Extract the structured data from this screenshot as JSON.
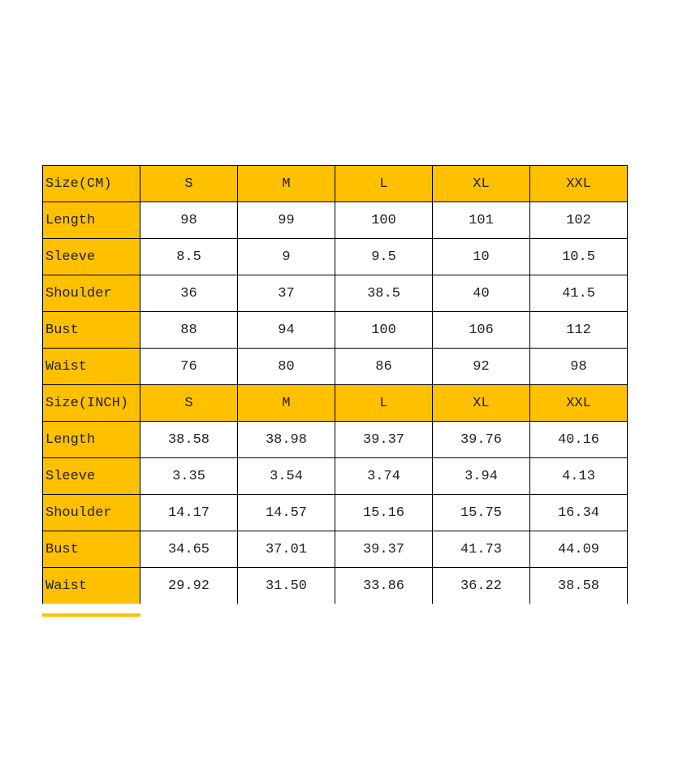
{
  "colors": {
    "header": "#FFC000",
    "border": "#000000"
  },
  "sections": [
    {
      "header": [
        "Size(CM)",
        "S",
        "M",
        "L",
        "XL",
        "XXL"
      ],
      "rows": [
        {
          "label": "Length",
          "values": [
            "98",
            "99",
            "100",
            "101",
            "102"
          ]
        },
        {
          "label": "Sleeve",
          "values": [
            "8.5",
            "9",
            "9.5",
            "10",
            "10.5"
          ]
        },
        {
          "label": "Shoulder",
          "values": [
            "36",
            "37",
            "38.5",
            "40",
            "41.5"
          ]
        },
        {
          "label": "Bust",
          "values": [
            "88",
            "94",
            "100",
            "106",
            "112"
          ]
        },
        {
          "label": "Waist",
          "values": [
            "76",
            "80",
            "86",
            "92",
            "98"
          ]
        }
      ]
    },
    {
      "header": [
        "Size(INCH)",
        "S",
        "M",
        "L",
        "XL",
        "XXL"
      ],
      "rows": [
        {
          "label": "Length",
          "values": [
            "38.58",
            "38.98",
            "39.37",
            "39.76",
            "40.16"
          ]
        },
        {
          "label": "Sleeve",
          "values": [
            "3.35",
            "3.54",
            "3.74",
            "3.94",
            "4.13"
          ]
        },
        {
          "label": "Shoulder",
          "values": [
            "14.17",
            "14.57",
            "15.16",
            "15.75",
            "16.34"
          ]
        },
        {
          "label": "Bust",
          "values": [
            "34.65",
            "37.01",
            "39.37",
            "41.73",
            "44.09"
          ]
        },
        {
          "label": "Waist",
          "values": [
            "29.92",
            "31.50",
            "33.86",
            "36.22",
            "38.58"
          ]
        }
      ]
    }
  ]
}
